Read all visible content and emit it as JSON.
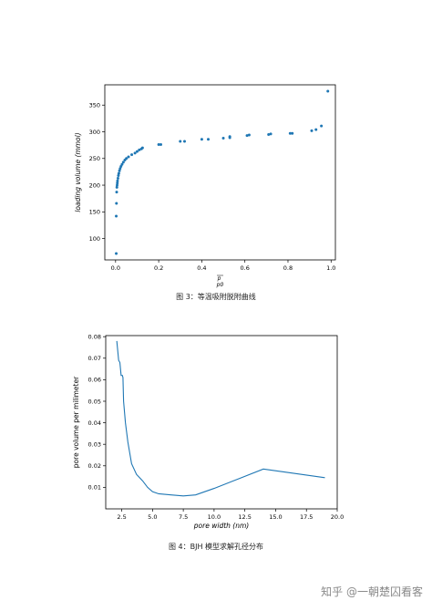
{
  "figures": [
    {
      "caption": "图 3：等温吸附脱附曲线",
      "chart_data": {
        "type": "scatter",
        "xlabel": "p / p0",
        "ylabel": "loading  volume  (mmol)",
        "xlim": [
          -0.05,
          1.02
        ],
        "ylim": [
          60,
          388
        ],
        "xticks": [
          0.0,
          0.2,
          0.4,
          0.6,
          0.8,
          1.0
        ],
        "xtick_labels": [
          "0.0",
          "0.2",
          "0.4",
          "0.6",
          "0.8",
          "1.0"
        ],
        "yticks": [
          100,
          150,
          200,
          250,
          300,
          350
        ],
        "ytick_labels": [
          "100",
          "150",
          "200",
          "250",
          "300",
          "350"
        ],
        "color": "#1f77b4",
        "grid": false,
        "points": [
          [
            0.003,
            72
          ],
          [
            0.003,
            142
          ],
          [
            0.004,
            166
          ],
          [
            0.005,
            187
          ],
          [
            0.006,
            196
          ],
          [
            0.007,
            200
          ],
          [
            0.008,
            204
          ],
          [
            0.009,
            208
          ],
          [
            0.011,
            213
          ],
          [
            0.013,
            218
          ],
          [
            0.015,
            222
          ],
          [
            0.018,
            227
          ],
          [
            0.021,
            231
          ],
          [
            0.025,
            235
          ],
          [
            0.03,
            239
          ],
          [
            0.036,
            243
          ],
          [
            0.043,
            247
          ],
          [
            0.05,
            250
          ],
          [
            0.06,
            253
          ],
          [
            0.075,
            257
          ],
          [
            0.09,
            260
          ],
          [
            0.1,
            263
          ],
          [
            0.11,
            266
          ],
          [
            0.12,
            268
          ],
          [
            0.125,
            270
          ],
          [
            0.2,
            276
          ],
          [
            0.21,
            276
          ],
          [
            0.3,
            282
          ],
          [
            0.32,
            282
          ],
          [
            0.4,
            286
          ],
          [
            0.43,
            286
          ],
          [
            0.5,
            288
          ],
          [
            0.53,
            289
          ],
          [
            0.53,
            291
          ],
          [
            0.61,
            293
          ],
          [
            0.62,
            294
          ],
          [
            0.71,
            295
          ],
          [
            0.72,
            296
          ],
          [
            0.81,
            297
          ],
          [
            0.82,
            297
          ],
          [
            0.91,
            302
          ],
          [
            0.93,
            304
          ],
          [
            0.955,
            311
          ],
          [
            0.985,
            376
          ]
        ]
      }
    },
    {
      "caption": "图 4：BJH 模型求解孔径分布",
      "chart_data": {
        "type": "line",
        "xlabel": "pore  width  (nm)",
        "ylabel": "pore volume per milimeter",
        "xlim": [
          1.2,
          20.0
        ],
        "ylim": [
          0.0,
          0.0805
        ],
        "xticks": [
          2.5,
          5.0,
          7.5,
          10.0,
          12.5,
          15.0,
          17.5,
          20.0
        ],
        "xtick_labels": [
          "2.5",
          "5.0",
          "7.5",
          "10.0",
          "12.5",
          "15.0",
          "17.5",
          "20.0"
        ],
        "yticks": [
          0.01,
          0.02,
          0.03,
          0.04,
          0.05,
          0.06,
          0.07,
          0.08
        ],
        "ytick_labels": [
          "0.01",
          "0.02",
          "0.03",
          "0.04",
          "0.05",
          "0.06",
          "0.07",
          "0.08"
        ],
        "color": "#1f77b4",
        "grid": false,
        "series": [
          {
            "x": [
              2.1,
              2.25,
              2.35,
              2.45,
              2.55,
              2.6,
              2.65,
              2.8,
              3.0,
              3.3,
              3.7,
              4.2,
              4.6,
              5.0,
              5.5,
              6.5,
              7.5,
              8.5,
              10.0,
              12.0,
              14.0,
              16.5,
              19.0
            ],
            "y": [
              0.078,
              0.069,
              0.068,
              0.062,
              0.062,
              0.061,
              0.05,
              0.04,
              0.031,
              0.021,
              0.016,
              0.013,
              0.01,
              0.008,
              0.007,
              0.0065,
              0.006,
              0.0065,
              0.0095,
              0.014,
              0.0185,
              0.0165,
              0.0145
            ]
          }
        ]
      }
    }
  ],
  "watermark": {
    "text": "知乎 @一朝楚囚看客"
  }
}
